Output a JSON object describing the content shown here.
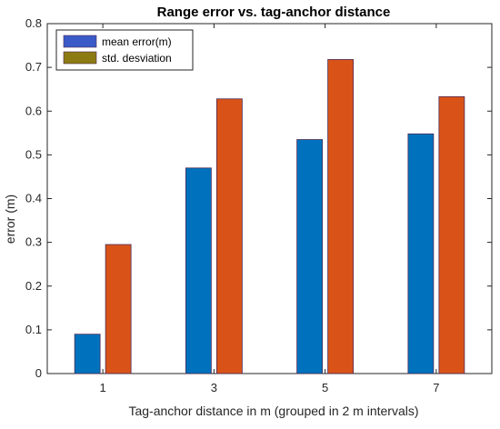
{
  "colors": {
    "mean": "#0072BD",
    "std": "#D95319",
    "legend_mean": "#3A5BC7",
    "legend_std": "#8C7A12",
    "axis": "#262626",
    "bar_edge": "#4D2A55"
  },
  "chart_data": {
    "type": "bar",
    "title": "Range error vs. tag-anchor distance",
    "xlabel": "Tag-anchor distance in m (grouped in 2 m intervals)",
    "ylabel": "error (m)",
    "categories": [
      "1",
      "3",
      "5",
      "7"
    ],
    "series": [
      {
        "name": "mean error(m)",
        "values": [
          0.09,
          0.47,
          0.535,
          0.548
        ]
      },
      {
        "name": "std. desviation",
        "values": [
          0.295,
          0.628,
          0.718,
          0.633
        ]
      }
    ],
    "ylim": [
      0,
      0.8
    ],
    "yticks": [
      "0",
      "0.1",
      "0.2",
      "0.3",
      "0.4",
      "0.5",
      "0.6",
      "0.7",
      "0.8"
    ],
    "grid": false,
    "legend_position": "top-left"
  }
}
